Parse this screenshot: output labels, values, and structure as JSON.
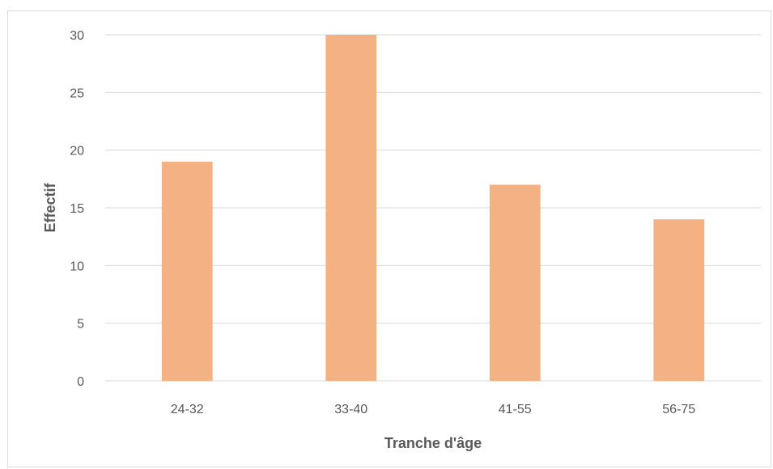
{
  "colors": {
    "bar": "#F4B183",
    "grid": "#D9D9D9",
    "text": "#595959"
  },
  "chart_data": {
    "type": "bar",
    "title": "",
    "xlabel": "Tranche d'âge",
    "ylabel": "Effectif",
    "categories": [
      "24-32",
      "33-40",
      "41-55",
      "56-75"
    ],
    "values": [
      19,
      30,
      17,
      14
    ],
    "ylim": [
      0,
      30
    ],
    "yticks": [
      0,
      5,
      10,
      15,
      20,
      25,
      30
    ],
    "grid": true,
    "legend": "none"
  }
}
